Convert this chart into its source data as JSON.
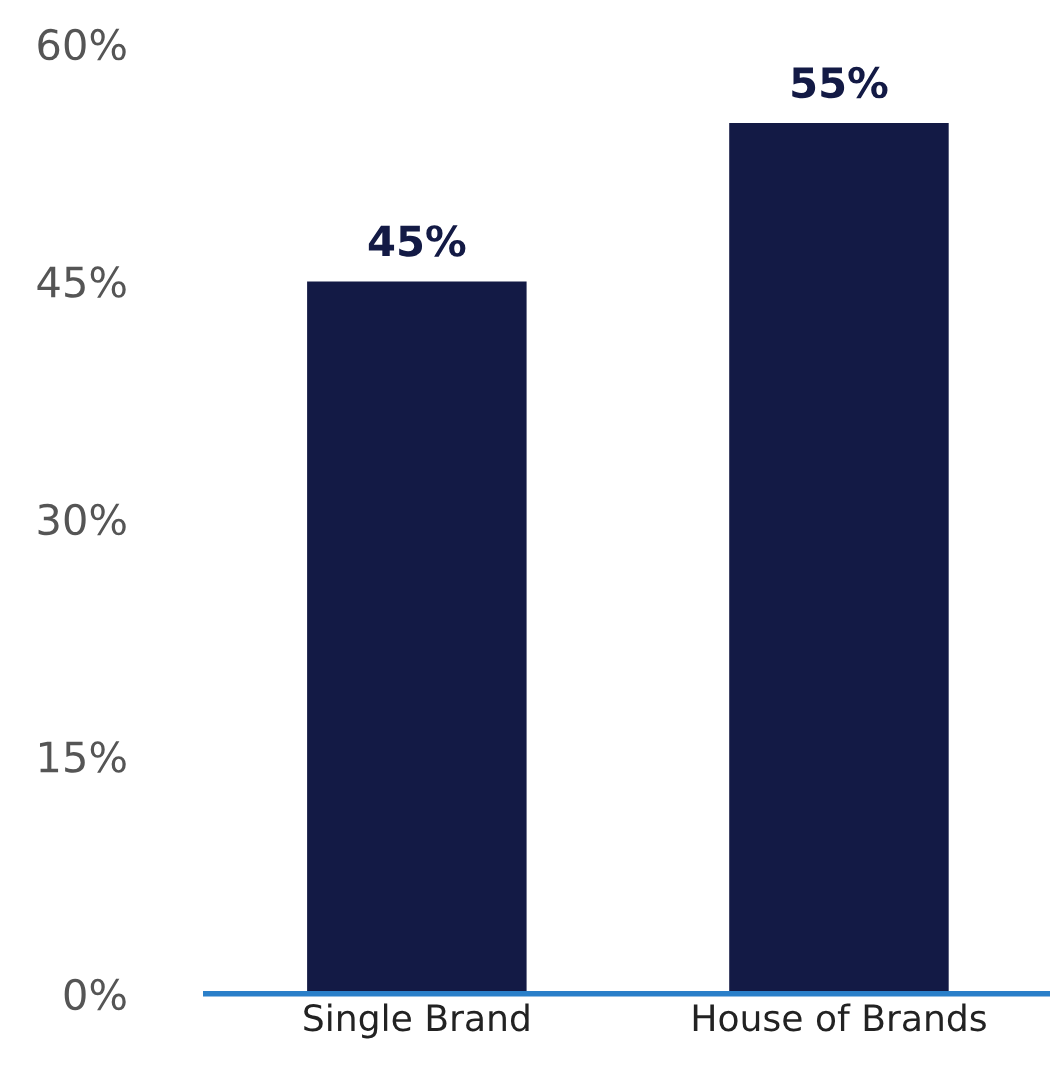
{
  "chart_data": {
    "type": "bar",
    "categories": [
      "Single Brand",
      "House of Brands"
    ],
    "values": [
      45,
      55
    ],
    "color": "#131a45",
    "ylim": [
      0,
      60
    ],
    "yticks": [
      {
        "value": 0,
        "label": "0%"
      },
      {
        "value": 15,
        "label": "15%"
      },
      {
        "value": 30,
        "label": "30%"
      },
      {
        "value": 45,
        "label": "45%"
      },
      {
        "value": 60,
        "label": "60%"
      }
    ],
    "value_labels": [
      "45%",
      "55%"
    ],
    "grid": false,
    "legend": false
  }
}
